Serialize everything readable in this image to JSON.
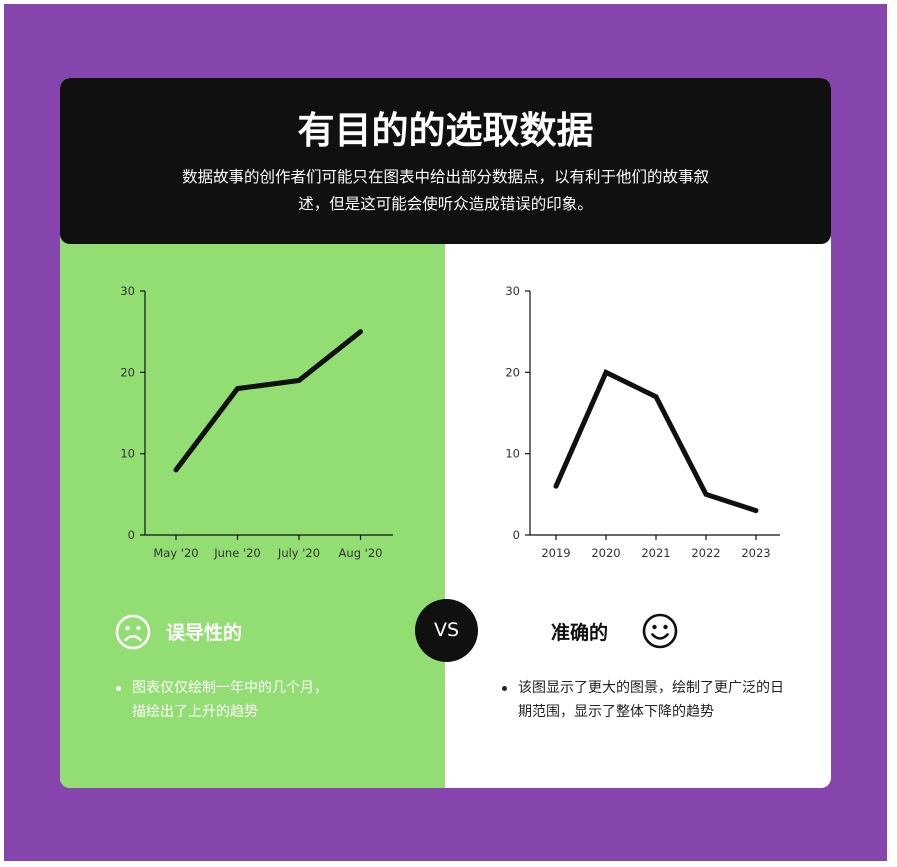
{
  "header": {
    "title": "有目的的选取数据",
    "subtitle": "数据故事的创作者们可能只在图表中给出部分数据点，以有利于他们的故事叙述，但是这可能会使听众造成错误的印象。"
  },
  "colors": {
    "frame": "#8545ad",
    "header_bg": "#101010",
    "left_panel": "#92de73",
    "right_panel": "#ffffff",
    "line": "#101010"
  },
  "chart_data": [
    {
      "type": "line",
      "categories": [
        "May '20",
        "June '20",
        "July '20",
        "Aug '20"
      ],
      "values": [
        8,
        18,
        19,
        25
      ],
      "ylim": [
        0,
        30
      ],
      "yticks": [
        "0",
        "10",
        "20",
        "30"
      ],
      "title": "",
      "xlabel": "",
      "ylabel": "",
      "grid": false
    },
    {
      "type": "line",
      "categories": [
        "2019",
        "2020",
        "2021",
        "2022",
        "2023"
      ],
      "values": [
        6,
        20,
        17,
        5,
        3
      ],
      "ylim": [
        0,
        30
      ],
      "yticks": [
        "0",
        "10",
        "20",
        "30"
      ],
      "title": "",
      "xlabel": "",
      "ylabel": "",
      "grid": false
    }
  ],
  "vs_label": "VS",
  "left_verdict": {
    "label": "误导性的",
    "icon": "sad-face-icon",
    "bullet": "图表仅仅绘制一年中的几个月，描绘出了上升的趋势"
  },
  "right_verdict": {
    "label": "准确的",
    "icon": "smiley-face-icon",
    "bullet": "该图显示了更大的图景，绘制了更广泛的日期范围，显示了整体下降的趋势"
  }
}
